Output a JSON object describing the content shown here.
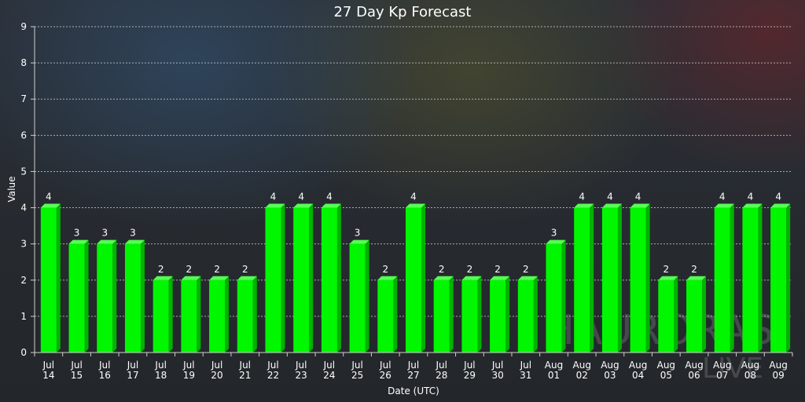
{
  "chart_data": {
    "type": "bar",
    "title": "27 Day Kp Forecast",
    "xlabel": "Date (UTC)",
    "ylabel": "Value",
    "ylim": [
      0,
      9
    ],
    "yticks": [
      0,
      1,
      2,
      3,
      4,
      5,
      6,
      7,
      8,
      9
    ],
    "grid": true,
    "legend": "none",
    "categories": [
      [
        "Jul",
        "14"
      ],
      [
        "Jul",
        "15"
      ],
      [
        "Jul",
        "16"
      ],
      [
        "Jul",
        "17"
      ],
      [
        "Jul",
        "18"
      ],
      [
        "Jul",
        "19"
      ],
      [
        "Jul",
        "20"
      ],
      [
        "Jul",
        "21"
      ],
      [
        "Jul",
        "22"
      ],
      [
        "Jul",
        "23"
      ],
      [
        "Jul",
        "24"
      ],
      [
        "Jul",
        "25"
      ],
      [
        "Jul",
        "26"
      ],
      [
        "Jul",
        "27"
      ],
      [
        "Jul",
        "28"
      ],
      [
        "Jul",
        "29"
      ],
      [
        "Jul",
        "30"
      ],
      [
        "Jul",
        "31"
      ],
      [
        "Aug",
        "01"
      ],
      [
        "Aug",
        "02"
      ],
      [
        "Aug",
        "03"
      ],
      [
        "Aug",
        "04"
      ],
      [
        "Aug",
        "05"
      ],
      [
        "Aug",
        "06"
      ],
      [
        "Aug",
        "07"
      ],
      [
        "Aug",
        "08"
      ],
      [
        "Aug",
        "09"
      ]
    ],
    "values": [
      4,
      3,
      3,
      3,
      2,
      2,
      2,
      2,
      4,
      4,
      4,
      3,
      2,
      4,
      2,
      2,
      2,
      2,
      3,
      4,
      4,
      4,
      2,
      2,
      4,
      4,
      4
    ],
    "colors": {
      "bar_front": "#00f700",
      "bar_side": "#00b300",
      "bar_top": "#55ff55"
    }
  },
  "watermark": {
    "line1": "HAURORAS",
    "line2": "LIVE"
  }
}
